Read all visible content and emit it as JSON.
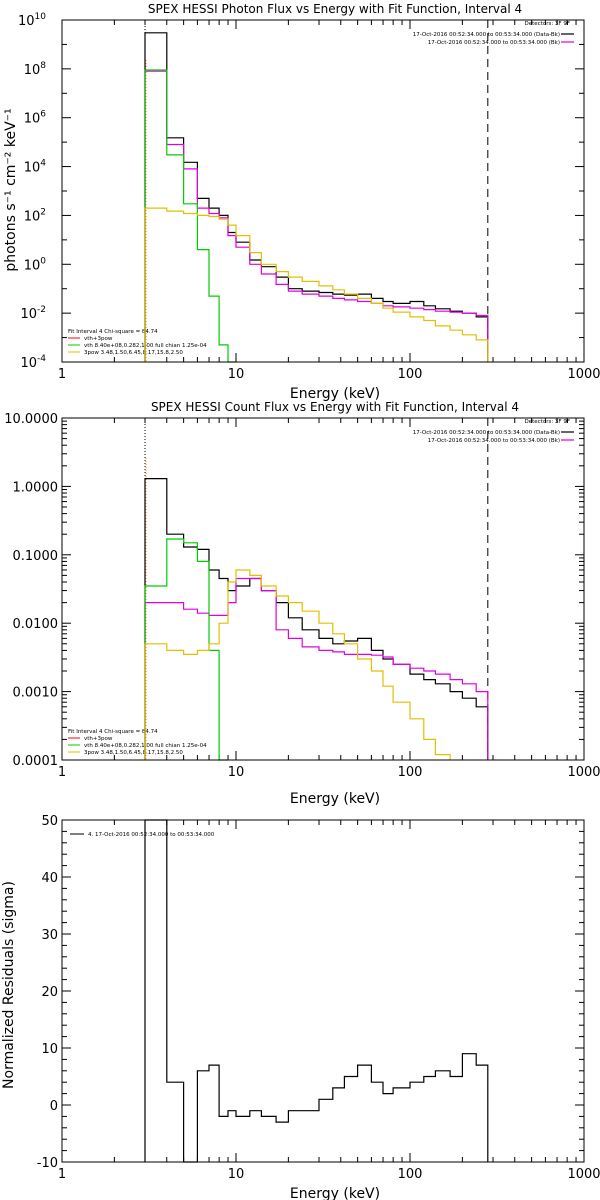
{
  "colors": {
    "data": "#000000",
    "total": "#e000e0",
    "thermal": "#00cc00",
    "power": "#e0c000",
    "lowlimit": "#ff8800",
    "model_red": "#ff0000"
  },
  "chart_data": [
    {
      "type": "line",
      "title": "SPEX HESSI Photon Flux vs Energy with Fit Function, Interval 4",
      "xlabel": "Energy (keV)",
      "ylabel": "photons s⁻¹ cm⁻² keV⁻¹",
      "x_scale": "log",
      "y_scale": "log",
      "xlim": [
        1,
        1000
      ],
      "ylim": [
        0.0001,
        10000000000
      ],
      "x_ticks": [
        "1",
        "10",
        "100",
        "1000"
      ],
      "y_ticks": [
        {
          "label": "10",
          "exp": "-4"
        },
        {
          "label": "10",
          "exp": "-2"
        },
        {
          "label": "10",
          "exp": "0"
        },
        {
          "label": "10",
          "exp": "2"
        },
        {
          "label": "10",
          "exp": "4"
        },
        {
          "label": "10",
          "exp": "6"
        },
        {
          "label": "10",
          "exp": "8"
        },
        {
          "label": "10",
          "exp": "10"
        }
      ],
      "fit_range_keV": [
        3.0,
        280
      ],
      "legend_top": [
        "Detectors: 3F 9F",
        "17-Oct-2016 00:52:34.000 to 00:53:34.000 (Data-Bk)",
        "17-Oct-2016 00:52:34.000 to 00:53:34.000 (Bk)"
      ],
      "legend_bottom": [
        "Fit Interval  4    Chi-square = 84.74",
        "vth+3pow",
        "vth 8.40e+08,0.282,1.00  full chian 1.25e-04",
        "3pow 3.48,1.50,6.45,8.17,15.8,2.50"
      ],
      "series": [
        {
          "color_key": "data",
          "edges": [
            3.0,
            4.0,
            5.0,
            6.0,
            7.0,
            8.0,
            9.0,
            10.0,
            12.0,
            14.0,
            17.0,
            20.0,
            24.0,
            30.0,
            36.0,
            42.0,
            50.0,
            60.0,
            70.0,
            80.0,
            100.0,
            120.0,
            140.0,
            170.0,
            200.0,
            240.0,
            280.0
          ],
          "values": [
            3000000000.0,
            150000.0,
            15000.0,
            500.0,
            200.0,
            100.0,
            20.0,
            8.0,
            1.5,
            0.8,
            0.3,
            0.1,
            0.08,
            0.07,
            0.06,
            0.055,
            0.06,
            0.04,
            0.03,
            0.025,
            0.03,
            0.02,
            0.015,
            0.012,
            0.01,
            0.007
          ]
        },
        {
          "color_key": "total",
          "edges": [
            3.0,
            4.0,
            5.0,
            6.0,
            7.0,
            8.0,
            9.0,
            10.0,
            12.0,
            14.0,
            17.0,
            20.0,
            24.0,
            30.0,
            36.0,
            42.0,
            50.0,
            60.0,
            70.0,
            80.0,
            100.0,
            120.0,
            140.0,
            170.0,
            200.0,
            240.0,
            280.0
          ],
          "values": [
            80000000.0,
            80000.0,
            8000.0,
            200.0,
            120.0,
            80.0,
            15.0,
            5.0,
            1.0,
            0.4,
            0.15,
            0.08,
            0.06,
            0.05,
            0.04,
            0.035,
            0.03,
            0.025,
            0.02,
            0.018,
            0.016,
            0.014,
            0.012,
            0.011,
            0.01,
            0.008
          ]
        },
        {
          "color_key": "thermal",
          "edges": [
            3.0,
            4.0,
            5.0,
            6.0,
            7.0,
            8.0,
            9.0,
            10.0
          ],
          "values": [
            90000000.0,
            30000.0,
            300.0,
            4.0,
            0.05,
            0.0005,
            1e-05
          ]
        },
        {
          "color_key": "power",
          "edges": [
            3.0,
            4.0,
            5.0,
            6.0,
            7.0,
            8.0,
            9.0,
            10.0,
            12.0,
            14.0,
            17.0,
            20.0,
            24.0,
            30.0,
            36.0,
            42.0,
            50.0,
            60.0,
            70.0,
            80.0,
            100.0,
            120.0,
            140.0,
            170.0,
            200.0,
            240.0,
            280.0
          ],
          "values": [
            200.0,
            150.0,
            120.0,
            100.0,
            90.0,
            70.0,
            40.0,
            15.0,
            3.0,
            1.0,
            0.5,
            0.3,
            0.2,
            0.13,
            0.09,
            0.06,
            0.04,
            0.025,
            0.016,
            0.011,
            0.007,
            0.005,
            0.003,
            0.002,
            0.0013,
            0.0008
          ]
        }
      ]
    },
    {
      "type": "line",
      "title": "SPEX HESSI Count Flux vs Energy with Fit Function, Interval 4",
      "xlabel": "Energy (keV)",
      "ylabel": "",
      "x_scale": "log",
      "y_scale": "log",
      "xlim": [
        1,
        1000
      ],
      "ylim": [
        0.0001,
        10.0
      ],
      "x_ticks": [
        "1",
        "10",
        "100",
        "1000"
      ],
      "y_ticks": [
        {
          "label": "0.0001"
        },
        {
          "label": "0.0010"
        },
        {
          "label": "0.0100"
        },
        {
          "label": "0.1000"
        },
        {
          "label": "1.0000"
        },
        {
          "label": "10.0000"
        }
      ],
      "fit_range_keV": [
        3.0,
        280
      ],
      "legend_top": [
        "Detectors: 3F 9F",
        "17-Oct-2016 00:52:34.000 to 00:53:34.000 (Data-Bk)",
        "17-Oct-2016 00:52:34.000 to 00:53:34.000 (Bk)"
      ],
      "legend_bottom": [
        "Fit Interval  4    Chi-square = 84.74",
        "vth+3pow",
        "vth 8.40e+08,0.282,1.00  full chian 1.25e-04",
        "3pow 3.48,1.50,6.45,8.17,15.8,2.50"
      ],
      "series": [
        {
          "color_key": "data",
          "edges": [
            3.0,
            4.0,
            5.0,
            6.0,
            7.0,
            8.0,
            9.0,
            10.0,
            12.0,
            14.0,
            17.0,
            20.0,
            24.0,
            30.0,
            36.0,
            42.0,
            50.0,
            60.0,
            70.0,
            80.0,
            100.0,
            120.0,
            140.0,
            170.0,
            200.0,
            240.0,
            280.0
          ],
          "values": [
            1.3,
            0.2,
            0.13,
            0.12,
            0.06,
            0.045,
            0.03,
            0.035,
            0.045,
            0.03,
            0.02,
            0.012,
            0.008,
            0.006,
            0.005,
            0.0055,
            0.006,
            0.004,
            0.003,
            0.0025,
            0.0018,
            0.0015,
            0.0013,
            0.001,
            0.0008,
            0.0006
          ]
        },
        {
          "color_key": "total",
          "edges": [
            3.0,
            4.0,
            5.0,
            6.0,
            7.0,
            8.0,
            9.0,
            10.0,
            12.0,
            14.0,
            17.0,
            20.0,
            24.0,
            30.0,
            36.0,
            42.0,
            50.0,
            60.0,
            70.0,
            80.0,
            100.0,
            120.0,
            140.0,
            170.0,
            200.0,
            240.0,
            280.0
          ],
          "values": [
            0.02,
            0.02,
            0.016,
            0.014,
            0.013,
            0.013,
            0.02,
            0.045,
            0.045,
            0.03,
            0.008,
            0.006,
            0.0045,
            0.004,
            0.0038,
            0.0035,
            0.0035,
            0.0034,
            0.0032,
            0.0025,
            0.0022,
            0.002,
            0.0018,
            0.0015,
            0.0013,
            0.001
          ]
        },
        {
          "color_key": "thermal",
          "edges": [
            3.0,
            4.0,
            5.0,
            6.0,
            7.0,
            8.0,
            9.0
          ],
          "values": [
            0.035,
            0.17,
            0.15,
            0.08,
            0.004,
            5e-05
          ]
        },
        {
          "color_key": "power",
          "edges": [
            3.0,
            4.0,
            5.0,
            6.0,
            7.0,
            8.0,
            9.0,
            10.0,
            12.0,
            14.0,
            17.0,
            20.0,
            24.0,
            30.0,
            36.0,
            42.0,
            50.0,
            60.0,
            70.0,
            80.0,
            100.0,
            120.0,
            140.0,
            170.0
          ],
          "values": [
            0.005,
            0.004,
            0.0035,
            0.004,
            0.005,
            0.01,
            0.04,
            0.06,
            0.05,
            0.035,
            0.025,
            0.02,
            0.015,
            0.01,
            0.007,
            0.005,
            0.003,
            0.002,
            0.0012,
            0.0007,
            0.0004,
            0.0002,
            0.00012
          ]
        }
      ]
    },
    {
      "type": "line",
      "title": "",
      "xlabel": "Energy (keV)",
      "ylabel": "Normalized Residuals (sigma)",
      "x_scale": "log",
      "y_scale": "linear",
      "xlim": [
        1,
        1000
      ],
      "ylim": [
        -10,
        50
      ],
      "x_ticks": [
        "1",
        "10",
        "100",
        "1000"
      ],
      "y_ticks": [
        {
          "label": "-10"
        },
        {
          "label": "0"
        },
        {
          "label": "10"
        },
        {
          "label": "20"
        },
        {
          "label": "30"
        },
        {
          "label": "40"
        },
        {
          "label": "50"
        }
      ],
      "legend_top": [
        "4. 17-Oct-2016 00:52:34.000 to 00:53:34.000"
      ],
      "series": [
        {
          "color_key": "data",
          "edges": [
            3.0,
            4.0,
            5.0,
            6.0,
            7.0,
            8.0,
            9.0,
            10.0,
            12.0,
            14.0,
            17.0,
            20.0,
            24.0,
            30.0,
            36.0,
            42.0,
            50.0,
            60.0,
            70.0,
            80.0,
            100.0,
            120.0,
            140.0,
            170.0,
            200.0,
            240.0,
            280.0
          ],
          "values": [
            50,
            4,
            -10,
            6,
            7,
            -2,
            -1,
            -2,
            -1,
            -2,
            -3,
            -1,
            -1,
            1,
            3,
            5,
            7,
            4,
            2,
            3,
            4,
            5,
            6,
            5,
            9,
            7
          ]
        }
      ]
    }
  ]
}
